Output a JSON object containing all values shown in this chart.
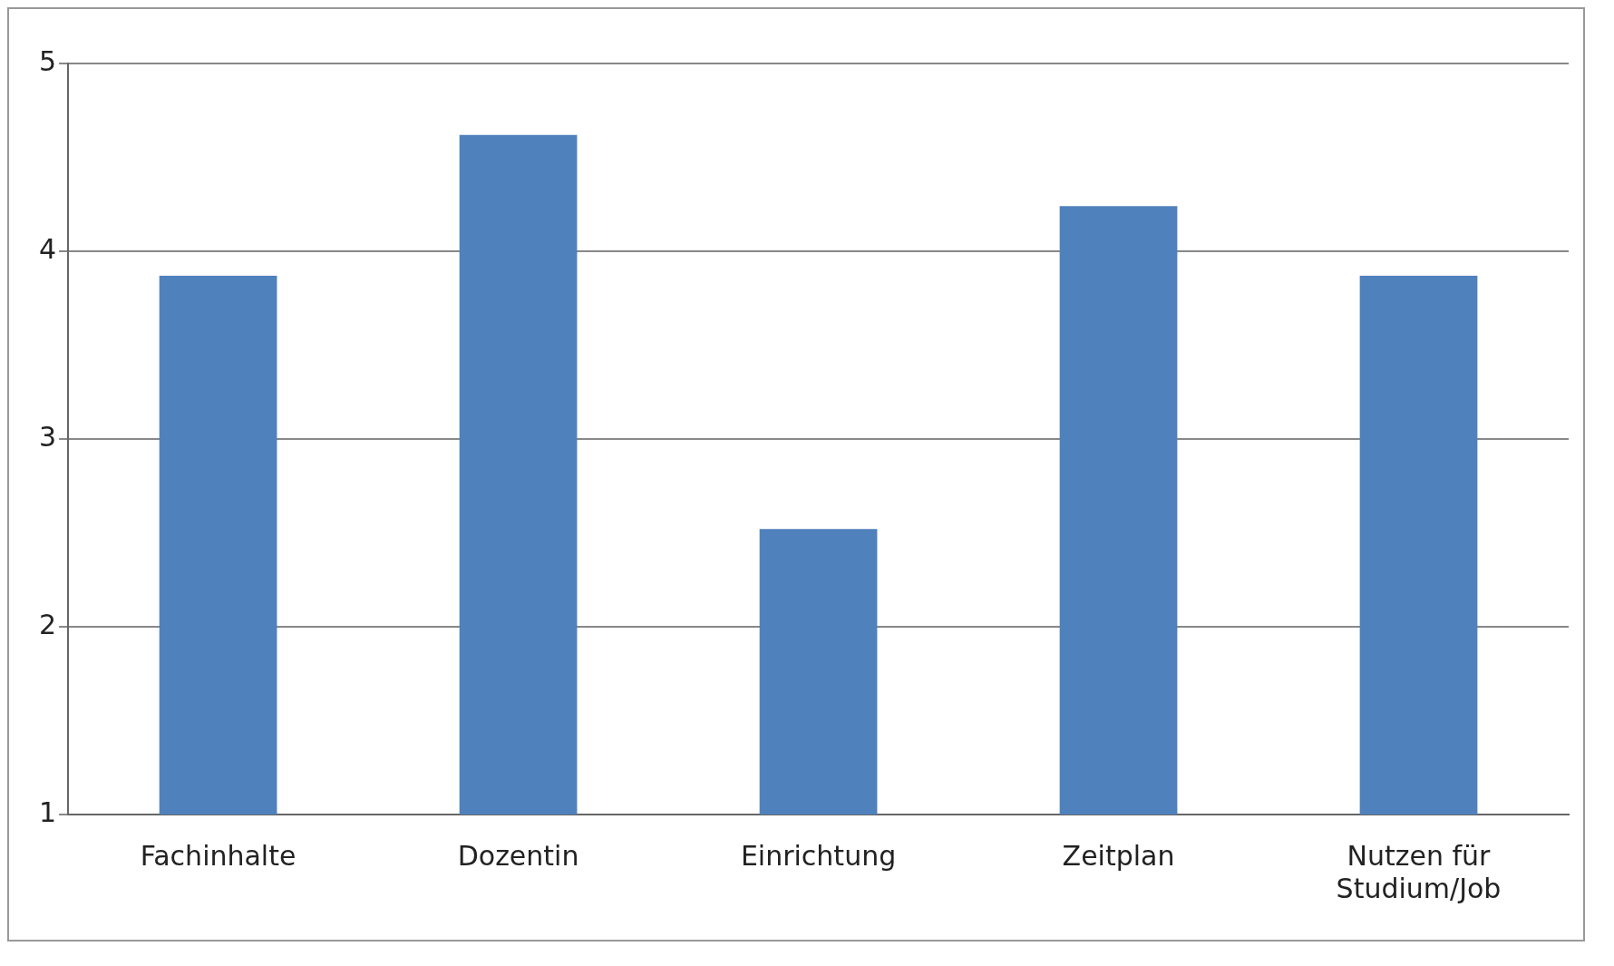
{
  "chart_data": {
    "type": "bar",
    "categories": [
      "Fachinhalte",
      "Dozentin",
      "Einrichtung",
      "Zeitplan",
      "Nutzen für Studium/Job"
    ],
    "values": [
      3.87,
      4.62,
      2.52,
      4.24,
      3.87
    ],
    "color": "#4f81bd",
    "ylim": [
      1,
      5
    ],
    "yticks": [
      1,
      2,
      3,
      4,
      5
    ],
    "grid": "y",
    "legend": false
  }
}
